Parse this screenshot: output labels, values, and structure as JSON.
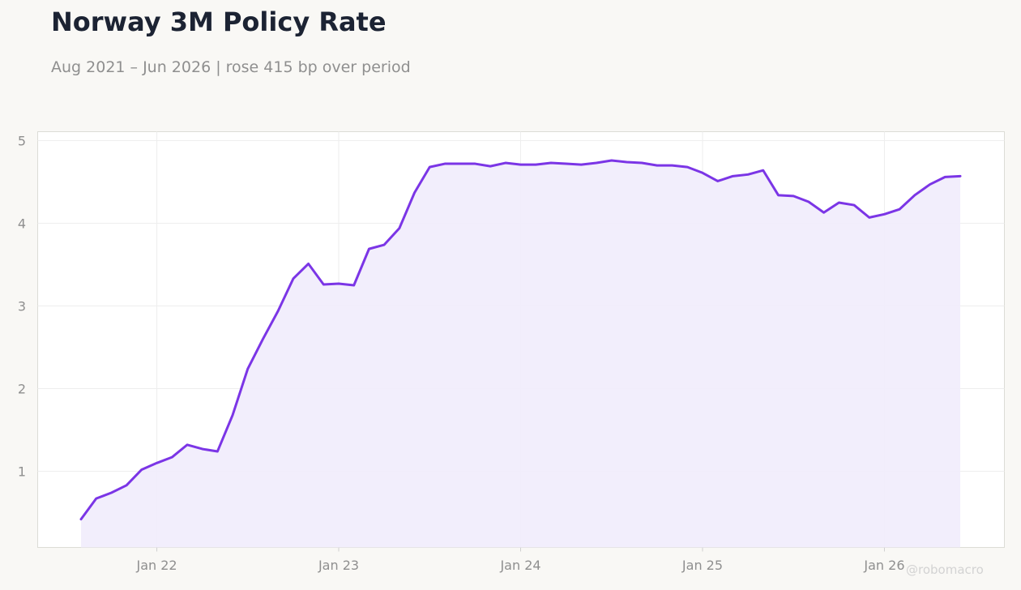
{
  "title": "Norway 3M Policy Rate",
  "subtitle": "Aug 2021 – Jun 2026 | rose 415 bp over period",
  "watermark": "@robomacro",
  "colors": {
    "line": "#7b35e6",
    "fill": "#f1ecfc",
    "background": "#f9f8f5",
    "plot_background": "#ffffff"
  },
  "chart_data": {
    "type": "area",
    "title": "Norway 3M Policy Rate",
    "subtitle": "Aug 2021 – Jun 2026 | rose 415 bp over period",
    "xlabel": "",
    "ylabel": "",
    "ylim": [
      0.0,
      5.1
    ],
    "y_ticks": [
      1,
      2,
      3,
      4,
      5
    ],
    "x_ticks": [
      {
        "date": "2022-01",
        "label": "Jan 22"
      },
      {
        "date": "2023-01",
        "label": "Jan 23"
      },
      {
        "date": "2024-01",
        "label": "Jan 24"
      },
      {
        "date": "2025-01",
        "label": "Jan 25"
      },
      {
        "date": "2026-01",
        "label": "Jan 26"
      }
    ],
    "grid": true,
    "legend": "none",
    "series": [
      {
        "points": [
          [
            "2021-08",
            0.42
          ],
          [
            "2021-09",
            0.67
          ],
          [
            "2021-10",
            0.74
          ],
          [
            "2021-11",
            0.83
          ],
          [
            "2021-12",
            1.02
          ],
          [
            "2022-01",
            1.1
          ],
          [
            "2022-02",
            1.17
          ],
          [
            "2022-03",
            1.32
          ],
          [
            "2022-04",
            1.27
          ],
          [
            "2022-05",
            1.24
          ],
          [
            "2022-06",
            1.68
          ],
          [
            "2022-07",
            2.24
          ],
          [
            "2022-08",
            2.6
          ],
          [
            "2022-09",
            2.94
          ],
          [
            "2022-10",
            3.33
          ],
          [
            "2022-11",
            3.51
          ],
          [
            "2022-12",
            3.26
          ],
          [
            "2023-01",
            3.27
          ],
          [
            "2023-02",
            3.25
          ],
          [
            "2023-03",
            3.69
          ],
          [
            "2023-04",
            3.74
          ],
          [
            "2023-05",
            3.94
          ],
          [
            "2023-06",
            4.37
          ],
          [
            "2023-07",
            4.68
          ],
          [
            "2023-08",
            4.72
          ],
          [
            "2023-09",
            4.72
          ],
          [
            "2023-10",
            4.72
          ],
          [
            "2023-11",
            4.69
          ],
          [
            "2023-12",
            4.73
          ],
          [
            "2024-01",
            4.71
          ],
          [
            "2024-02",
            4.71
          ],
          [
            "2024-03",
            4.73
          ],
          [
            "2024-04",
            4.72
          ],
          [
            "2024-05",
            4.71
          ],
          [
            "2024-06",
            4.73
          ],
          [
            "2024-07",
            4.76
          ],
          [
            "2024-08",
            4.74
          ],
          [
            "2024-09",
            4.73
          ],
          [
            "2024-10",
            4.7
          ],
          [
            "2024-11",
            4.7
          ],
          [
            "2024-12",
            4.68
          ],
          [
            "2025-01",
            4.61
          ],
          [
            "2025-02",
            4.51
          ],
          [
            "2025-03",
            4.57
          ],
          [
            "2025-04",
            4.59
          ],
          [
            "2025-05",
            4.64
          ],
          [
            "2025-06",
            4.34
          ],
          [
            "2025-07",
            4.33
          ],
          [
            "2025-08",
            4.26
          ],
          [
            "2025-09",
            4.13
          ],
          [
            "2025-10",
            4.25
          ],
          [
            "2025-11",
            4.22
          ],
          [
            "2025-12",
            4.07
          ],
          [
            "2026-01",
            4.11
          ],
          [
            "2026-02",
            4.17
          ],
          [
            "2026-03",
            4.34
          ],
          [
            "2026-04",
            4.47
          ],
          [
            "2026-05",
            4.56
          ],
          [
            "2026-06",
            4.57
          ]
        ]
      }
    ]
  }
}
